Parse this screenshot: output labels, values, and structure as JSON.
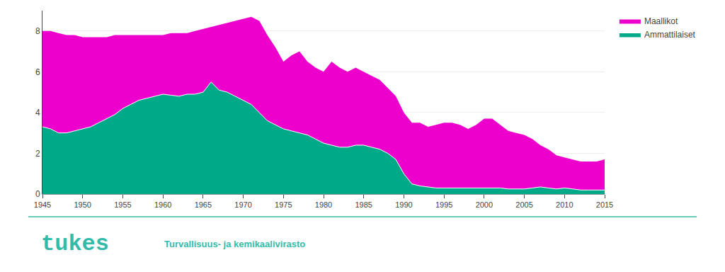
{
  "chart_data": {
    "type": "area",
    "x": [
      1945,
      1946,
      1947,
      1948,
      1949,
      1950,
      1951,
      1952,
      1953,
      1954,
      1955,
      1956,
      1957,
      1958,
      1959,
      1960,
      1961,
      1962,
      1963,
      1964,
      1965,
      1966,
      1967,
      1968,
      1969,
      1970,
      1971,
      1972,
      1973,
      1974,
      1975,
      1976,
      1977,
      1978,
      1979,
      1980,
      1981,
      1982,
      1983,
      1984,
      1985,
      1986,
      1987,
      1988,
      1989,
      1990,
      1991,
      1992,
      1993,
      1994,
      1995,
      1996,
      1997,
      1998,
      1999,
      2000,
      2001,
      2002,
      2003,
      2004,
      2005,
      2006,
      2007,
      2008,
      2009,
      2010,
      2011,
      2012,
      2013,
      2014,
      2015
    ],
    "series": [
      {
        "name": "Maallikot",
        "color": "#EE00CC",
        "values": [
          8.0,
          8.0,
          7.9,
          7.8,
          7.8,
          7.7,
          7.7,
          7.7,
          7.7,
          7.8,
          7.8,
          7.8,
          7.8,
          7.8,
          7.8,
          7.8,
          7.9,
          7.9,
          7.9,
          8.0,
          8.1,
          8.2,
          8.3,
          8.4,
          8.5,
          8.6,
          8.7,
          8.5,
          7.8,
          7.2,
          6.5,
          6.8,
          7.0,
          6.5,
          6.2,
          6.0,
          6.5,
          6.2,
          6.0,
          6.2,
          6.0,
          5.8,
          5.6,
          5.2,
          4.8,
          4.0,
          3.5,
          3.5,
          3.3,
          3.4,
          3.5,
          3.5,
          3.4,
          3.2,
          3.4,
          3.7,
          3.7,
          3.4,
          3.1,
          3.0,
          2.9,
          2.7,
          2.4,
          2.2,
          1.9,
          1.8,
          1.7,
          1.6,
          1.6,
          1.6,
          1.7
        ]
      },
      {
        "name": "Ammattilaiset",
        "color": "#00AA88",
        "values": [
          3.3,
          3.2,
          3.0,
          3.0,
          3.1,
          3.2,
          3.3,
          3.5,
          3.7,
          3.9,
          4.2,
          4.4,
          4.6,
          4.7,
          4.8,
          4.9,
          4.85,
          4.8,
          4.9,
          4.9,
          5.0,
          5.5,
          5.1,
          5.0,
          4.8,
          4.6,
          4.4,
          4.0,
          3.6,
          3.4,
          3.2,
          3.1,
          3.0,
          2.9,
          2.7,
          2.5,
          2.4,
          2.3,
          2.3,
          2.4,
          2.4,
          2.3,
          2.2,
          2.0,
          1.7,
          1.0,
          0.5,
          0.4,
          0.35,
          0.3,
          0.3,
          0.3,
          0.3,
          0.3,
          0.3,
          0.3,
          0.3,
          0.3,
          0.25,
          0.25,
          0.25,
          0.3,
          0.35,
          0.3,
          0.25,
          0.3,
          0.25,
          0.2,
          0.2,
          0.2,
          0.2
        ]
      }
    ],
    "xlim": [
      1945,
      2015
    ],
    "xticks": [
      1945,
      1950,
      1955,
      1960,
      1965,
      1970,
      1975,
      1980,
      1985,
      1990,
      1995,
      2000,
      2005,
      2010,
      2015
    ],
    "ylim": [
      0,
      9
    ],
    "yticks": [
      0,
      2,
      4,
      6,
      8
    ],
    "grid": true,
    "legend": "right",
    "annotations": [
      {
        "text": "tukes",
        "color": "#33BBAA"
      },
      {
        "text": "Turvallisuus- ja kemikaalivirasto",
        "color": "#33BBAA"
      }
    ]
  }
}
